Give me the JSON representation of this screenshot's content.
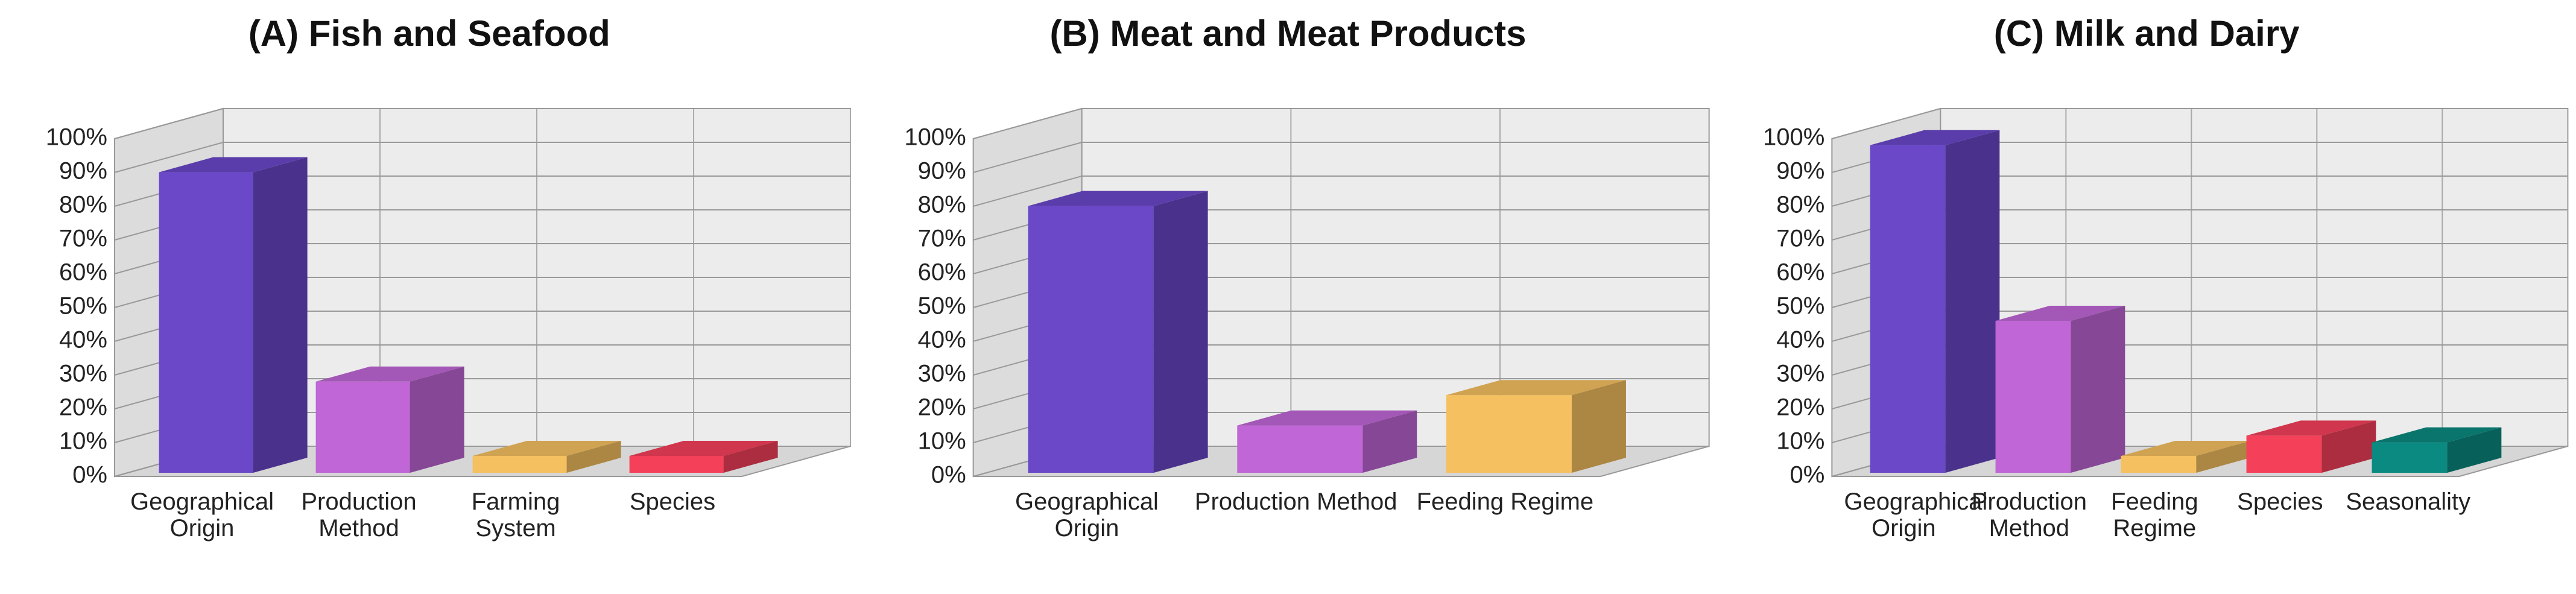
{
  "chart_data": [
    {
      "type": "bar3d",
      "title": "(A) Fish and Seafood",
      "categories": [
        "Geographical Origin",
        "Production Method",
        "Farming System",
        "Species"
      ],
      "values": [
        89,
        27,
        5,
        5
      ],
      "colors": [
        "#6a48c8",
        "#c066d6",
        "#f5c060",
        "#f5405a"
      ],
      "ylim": [
        0,
        100
      ],
      "yticks": [
        {
          "value": 0,
          "label": "0%"
        },
        {
          "value": 10,
          "label": "10%"
        },
        {
          "value": 20,
          "label": "20%"
        },
        {
          "value": 30,
          "label": "30%"
        },
        {
          "value": 40,
          "label": "40%"
        },
        {
          "value": 50,
          "label": "50%"
        },
        {
          "value": 60,
          "label": "60%"
        },
        {
          "value": 70,
          "label": "70%"
        },
        {
          "value": 80,
          "label": "80%"
        },
        {
          "value": 90,
          "label": "90%"
        },
        {
          "value": 100,
          "label": "100%"
        }
      ],
      "grid": true
    },
    {
      "type": "bar3d",
      "title": "(B) Meat and Meat Products",
      "categories": [
        "Geographical Origin",
        "Production Method",
        "Feeding Regime"
      ],
      "values": [
        79,
        14,
        23
      ],
      "colors": [
        "#6a48c8",
        "#c066d6",
        "#f5c060"
      ],
      "ylim": [
        0,
        100
      ],
      "yticks": [
        {
          "value": 0,
          "label": "0%"
        },
        {
          "value": 10,
          "label": "10%"
        },
        {
          "value": 20,
          "label": "20%"
        },
        {
          "value": 30,
          "label": "30%"
        },
        {
          "value": 40,
          "label": "40%"
        },
        {
          "value": 50,
          "label": "50%"
        },
        {
          "value": 60,
          "label": "60%"
        },
        {
          "value": 70,
          "label": "70%"
        },
        {
          "value": 80,
          "label": "80%"
        },
        {
          "value": 90,
          "label": "90%"
        },
        {
          "value": 100,
          "label": "100%"
        }
      ],
      "grid": true
    },
    {
      "type": "bar3d",
      "title": "(C) Milk and Dairy",
      "categories": [
        "Geographical Origin",
        "Production Method",
        "Feeding Regime",
        "Species",
        "Seasonality"
      ],
      "values": [
        97,
        45,
        5,
        11,
        9
      ],
      "colors": [
        "#6a48c8",
        "#c066d6",
        "#f5c060",
        "#f5405a",
        "#0a8a80"
      ],
      "ylim": [
        0,
        100
      ],
      "yticks": [
        {
          "value": 0,
          "label": "0%"
        },
        {
          "value": 10,
          "label": "10%"
        },
        {
          "value": 20,
          "label": "20%"
        },
        {
          "value": 30,
          "label": "30%"
        },
        {
          "value": 40,
          "label": "40%"
        },
        {
          "value": 50,
          "label": "50%"
        },
        {
          "value": 60,
          "label": "60%"
        },
        {
          "value": 70,
          "label": "70%"
        },
        {
          "value": 80,
          "label": "80%"
        },
        {
          "value": 90,
          "label": "90%"
        },
        {
          "value": 100,
          "label": "100%"
        }
      ],
      "grid": true
    }
  ]
}
